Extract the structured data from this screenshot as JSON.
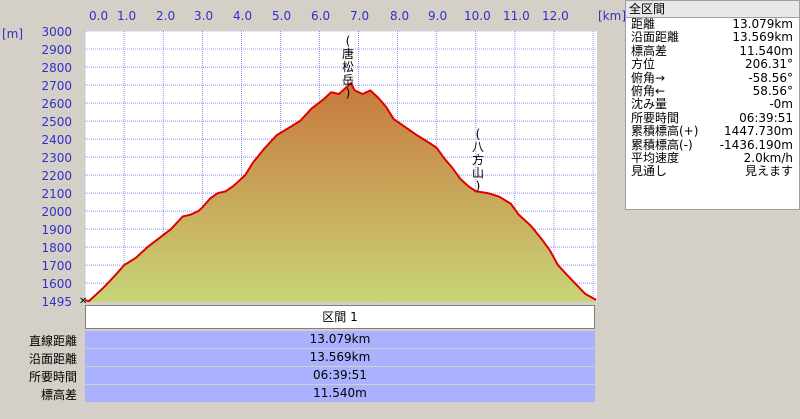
{
  "axis": {
    "y_unit": "[m]",
    "x_unit": "[km]",
    "y_ticks": [
      "3000",
      "2900",
      "2800",
      "2700",
      "2600",
      "2500",
      "2400",
      "2300",
      "2200",
      "2100",
      "2000",
      "1900",
      "1800",
      "1700",
      "1600",
      "1495"
    ],
    "x_ticks": [
      "0.0",
      "1.0",
      "2.0",
      "3.0",
      "4.0",
      "5.0",
      "6.0",
      "7.0",
      "8.0",
      "9.0",
      "10.0",
      "11.0",
      "12.0"
    ]
  },
  "annotations": [
    {
      "text": "(唐松岳)"
    },
    {
      "text": "(八方山)"
    }
  ],
  "section": {
    "header": "区間 1",
    "rows": [
      {
        "label": "直線距離",
        "value": "13.079km"
      },
      {
        "label": "沿面距離",
        "value": "13.569km"
      },
      {
        "label": "所要時間",
        "value": "06:39:51"
      },
      {
        "label": "標高差",
        "value": "11.540m"
      }
    ]
  },
  "summary_panel": {
    "title": "全区間",
    "rows": [
      {
        "key": "距離",
        "value": "13.079km"
      },
      {
        "key": "沿面距離",
        "value": "13.569km"
      },
      {
        "key": "標高差",
        "value": "11.540m"
      },
      {
        "key": "方位",
        "value": "206.31°"
      },
      {
        "key": "俯角→",
        "value": "-58.56°"
      },
      {
        "key": "俯角←",
        "value": "58.56°"
      },
      {
        "key": "沈み量",
        "value": "-0m"
      },
      {
        "key": "所要時間",
        "value": "06:39:51"
      },
      {
        "key": "累積標高(+)",
        "value": "1447.730m"
      },
      {
        "key": "累積標高(-)",
        "value": "-1436.190m"
      },
      {
        "key": "平均速度",
        "value": "2.0km/h"
      },
      {
        "key": "見通し",
        "value": "見えます"
      }
    ]
  },
  "colors": {
    "profile_line": "#e00000",
    "axis_text": "#3030c8",
    "grid": "#4a4aff",
    "fill_top": "#c8783c",
    "fill_bottom": "#c8d478",
    "section_bg": "#aab2ff"
  },
  "chart_data": {
    "type": "area",
    "x_unit": "km",
    "y_unit": "m",
    "xlim": [
      0,
      13.1
    ],
    "ylim": [
      1495,
      3000
    ],
    "grid": true,
    "x": [
      0.0,
      0.1,
      0.25,
      0.5,
      0.8,
      1.0,
      1.3,
      1.6,
      1.9,
      2.2,
      2.5,
      2.7,
      2.9,
      3.0,
      3.2,
      3.4,
      3.6,
      3.8,
      3.9,
      4.1,
      4.3,
      4.6,
      4.9,
      5.2,
      5.5,
      5.8,
      6.1,
      6.3,
      6.5,
      6.7,
      6.8,
      6.9,
      7.1,
      7.3,
      7.5,
      7.7,
      7.9,
      8.1,
      8.3,
      8.5,
      8.8,
      9.0,
      9.2,
      9.4,
      9.6,
      9.8,
      10.0,
      10.3,
      10.6,
      10.9,
      11.1,
      11.4,
      11.7,
      11.9,
      12.1,
      12.4,
      12.8,
      13.08
    ],
    "y": [
      1505,
      1500,
      1530,
      1580,
      1650,
      1700,
      1740,
      1800,
      1850,
      1900,
      1970,
      1980,
      2000,
      2020,
      2070,
      2100,
      2110,
      2140,
      2160,
      2200,
      2270,
      2350,
      2420,
      2460,
      2500,
      2570,
      2620,
      2660,
      2650,
      2690,
      2710,
      2670,
      2650,
      2670,
      2630,
      2580,
      2510,
      2480,
      2450,
      2420,
      2380,
      2350,
      2290,
      2240,
      2180,
      2140,
      2110,
      2100,
      2080,
      2040,
      1980,
      1920,
      1840,
      1780,
      1700,
      1630,
      1540,
      1506
    ]
  }
}
